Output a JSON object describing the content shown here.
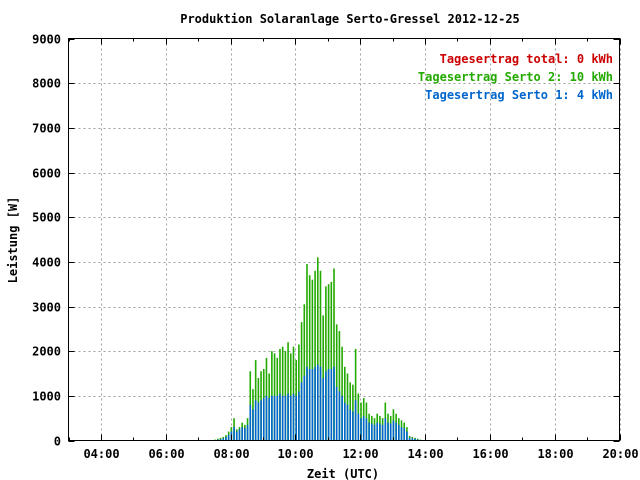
{
  "chart_data": {
    "type": "bar",
    "title": "Produktion Solaranlage Serto-Gressel 2012-12-25",
    "xlabel": "Zeit (UTC)",
    "ylabel": "Leistung [W]",
    "xlim_hours": [
      3.0,
      20.0
    ],
    "ylim": [
      0,
      9000
    ],
    "x_ticks": [
      "04:00",
      "06:00",
      "08:00",
      "10:00",
      "12:00",
      "14:00",
      "16:00",
      "18:00",
      "20:00"
    ],
    "y_ticks": [
      "0",
      "1000",
      "2000",
      "3000",
      "4000",
      "5000",
      "6000",
      "7000",
      "8000",
      "9000"
    ],
    "grid": true,
    "legend_placement": "top-right",
    "legend": [
      {
        "label": "Tagesertrag total: 0 kWh",
        "color": "#cc0000"
      },
      {
        "label": "Tagesertrag Serto 2: 10 kWh",
        "color": "#22aa00"
      },
      {
        "label": "Tagesertrag Serto 1: 4 kWh",
        "color": "#0066cc"
      }
    ],
    "series": [
      {
        "name": "Tagesertrag Serto 2: 10 kWh",
        "color": "#22aa00",
        "time_start": "07:30",
        "time_step_minutes": 5,
        "values": [
          20,
          40,
          60,
          80,
          120,
          200,
          300,
          500,
          250,
          300,
          400,
          350,
          500,
          1550,
          1150,
          1800,
          1400,
          1550,
          1600,
          1850,
          1500,
          2000,
          1950,
          1850,
          2050,
          2100,
          2000,
          2200,
          1950,
          2100,
          1800,
          2150,
          2650,
          3050,
          3950,
          3700,
          3600,
          3800,
          4100,
          3800,
          2800,
          3450,
          3500,
          3550,
          3850,
          2600,
          2450,
          2100,
          1650,
          1500,
          1300,
          1250,
          2050,
          1050,
          850,
          950,
          850,
          600,
          550,
          500,
          600,
          550,
          500,
          850,
          600,
          550,
          700,
          600,
          500,
          450,
          400,
          300,
          100,
          80,
          60,
          40,
          20
        ]
      },
      {
        "name": "Tagesertrag Serto 1: 4 kWh",
        "color": "#0066cc",
        "time_start": "07:30",
        "time_step_minutes": 5,
        "values": [
          10,
          20,
          30,
          50,
          80,
          130,
          200,
          300,
          200,
          250,
          300,
          280,
          350,
          800,
          700,
          900,
          850,
          900,
          950,
          1000,
          950,
          1000,
          1000,
          1000,
          1050,
          1000,
          1000,
          1050,
          1000,
          1050,
          1000,
          1100,
          1300,
          1450,
          1650,
          1600,
          1600,
          1650,
          1700,
          1650,
          1400,
          1550,
          1600,
          1600,
          1650,
          1200,
          1100,
          1000,
          850,
          800,
          700,
          650,
          900,
          600,
          500,
          550,
          500,
          400,
          380,
          350,
          400,
          380,
          350,
          500,
          400,
          380,
          450,
          400,
          350,
          300,
          280,
          200,
          60,
          50,
          40,
          25,
          10
        ]
      }
    ]
  }
}
